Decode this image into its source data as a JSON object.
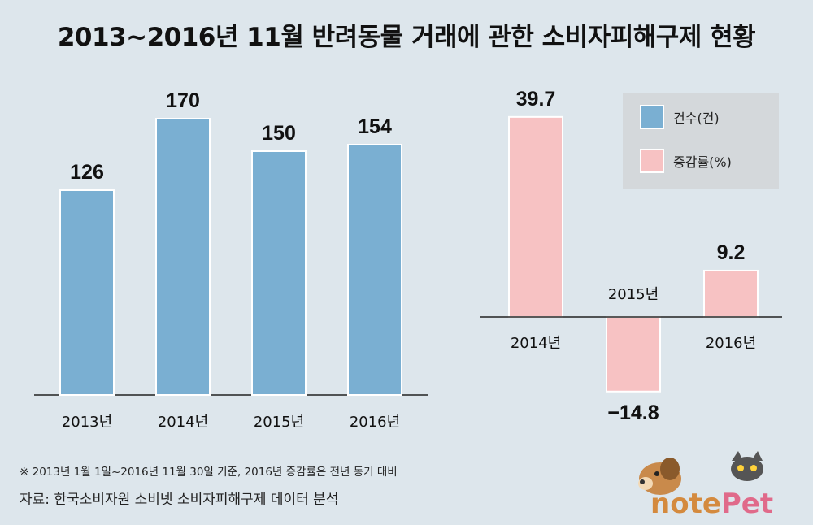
{
  "title": "2013~2016년 11월 반려동물 거래에 관한 소비자피해구제 현황",
  "note": "※ 2013년 1월 1일~2016년 11월 30일 기준, 2016년 증감률은 전년 동기 대비",
  "source": "자료: 한국소비자원 소비넷 소비자피해구제 데이터 분석",
  "logo": {
    "text": "notePet"
  },
  "colors": {
    "count_bar": "#7aafd2",
    "count_bar_stroke": "#ffffff",
    "rate_bar": "#f7c2c3",
    "rate_bar_stroke": "#ffffff",
    "legend_bg": "#d4d8db",
    "background": "#dde6ec"
  },
  "chart_data": [
    {
      "type": "bar",
      "categories": [
        "2013년",
        "2014년",
        "2015년",
        "2016년"
      ],
      "series": [
        {
          "name": "건수(건)",
          "values": [
            126,
            170,
            150,
            154
          ]
        }
      ],
      "value_labels": [
        "126",
        "170",
        "150",
        "154"
      ],
      "ylim": [
        0,
        200
      ],
      "grid": false
    },
    {
      "type": "bar",
      "categories": [
        "2014년",
        "2015년",
        "2016년"
      ],
      "series": [
        {
          "name": "증감률(%)",
          "values": [
            39.7,
            -14.8,
            9.2
          ]
        }
      ],
      "value_labels": [
        "39.7",
        "−14.8",
        "9.2"
      ],
      "ylim": [
        -20,
        45
      ],
      "grid": false
    }
  ],
  "legend": {
    "position": "top-right",
    "items": [
      {
        "label": "건수(건)",
        "color": "#7aafd2"
      },
      {
        "label": "증감률(%)",
        "color": "#f7c2c3"
      }
    ]
  }
}
